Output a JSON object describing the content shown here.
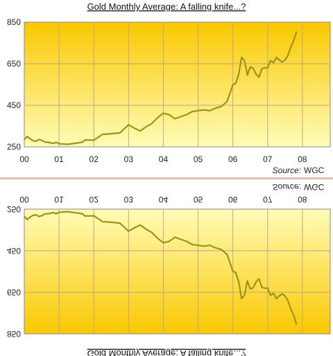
{
  "chart_data": [
    {
      "type": "line",
      "title": "Gold Monthly Average: A falling knife...?",
      "source_label": "Source:",
      "source_value": "WGC",
      "xlabel": "",
      "ylabel": "",
      "x_ticks": [
        "00",
        "01",
        "02",
        "03",
        "04",
        "05",
        "06",
        "07",
        "08"
      ],
      "y_ticks": [
        "250",
        "450",
        "650",
        "850"
      ],
      "xlim": [
        2000,
        2008.8
      ],
      "ylim": [
        250,
        850
      ],
      "grid": true,
      "colors": {
        "line": "#9a9418",
        "grid": "#b8a88a",
        "bg_top": "#fac800",
        "bg_bottom": "#fffcb8"
      },
      "series": [
        {
          "x": [
            2000.0,
            2000.083,
            2000.167,
            2000.25,
            2000.333,
            2000.417,
            2000.5,
            2000.583,
            2000.667,
            2000.75,
            2000.833,
            2000.917,
            2001.0,
            2001.25,
            2001.5,
            2001.667,
            2001.75,
            2002.0,
            2002.25,
            2002.5,
            2002.75,
            2003.0,
            2003.167,
            2003.333,
            2003.5,
            2003.667,
            2003.833,
            2004.0,
            2004.167,
            2004.333,
            2004.5,
            2004.667,
            2004.833,
            2005.0,
            2005.167,
            2005.333,
            2005.5,
            2005.667,
            2005.833,
            2006.0,
            2006.083,
            2006.167,
            2006.25,
            2006.333,
            2006.417,
            2006.5,
            2006.583,
            2006.667,
            2006.75,
            2006.833,
            2006.917,
            2007.0,
            2007.083,
            2007.167,
            2007.25,
            2007.333,
            2007.417,
            2007.5,
            2007.583,
            2007.667,
            2007.75,
            2007.833
          ],
          "y": [
            284,
            300,
            288,
            280,
            277,
            285,
            282,
            274,
            272,
            270,
            266,
            272,
            265,
            262,
            268,
            272,
            283,
            282,
            310,
            313,
            317,
            356,
            340,
            326,
            346,
            362,
            390,
            412,
            405,
            385,
            395,
            405,
            420,
            424,
            428,
            424,
            436,
            444,
            468,
            549,
            555,
            600,
            680,
            665,
            595,
            634,
            628,
            600,
            585,
            626,
            630,
            630,
            665,
            655,
            680,
            668,
            658,
            668,
            690,
            730,
            762,
            805
          ]
        }
      ]
    },
    {
      "type": "line",
      "title": "Gold Monthly Average: A falling knife...?",
      "source_label": "Source:",
      "source_value": "WGC",
      "note": "vertically mirrored copy of the first chart",
      "xlabel": "",
      "ylabel": "",
      "x_ticks": [
        "00",
        "01",
        "02",
        "03",
        "04",
        "05",
        "06",
        "07",
        "08"
      ],
      "y_ticks": [
        "250",
        "450",
        "650",
        "850"
      ],
      "xlim": [
        2000,
        2008.8
      ],
      "ylim": [
        250,
        850
      ],
      "grid": true
    }
  ]
}
